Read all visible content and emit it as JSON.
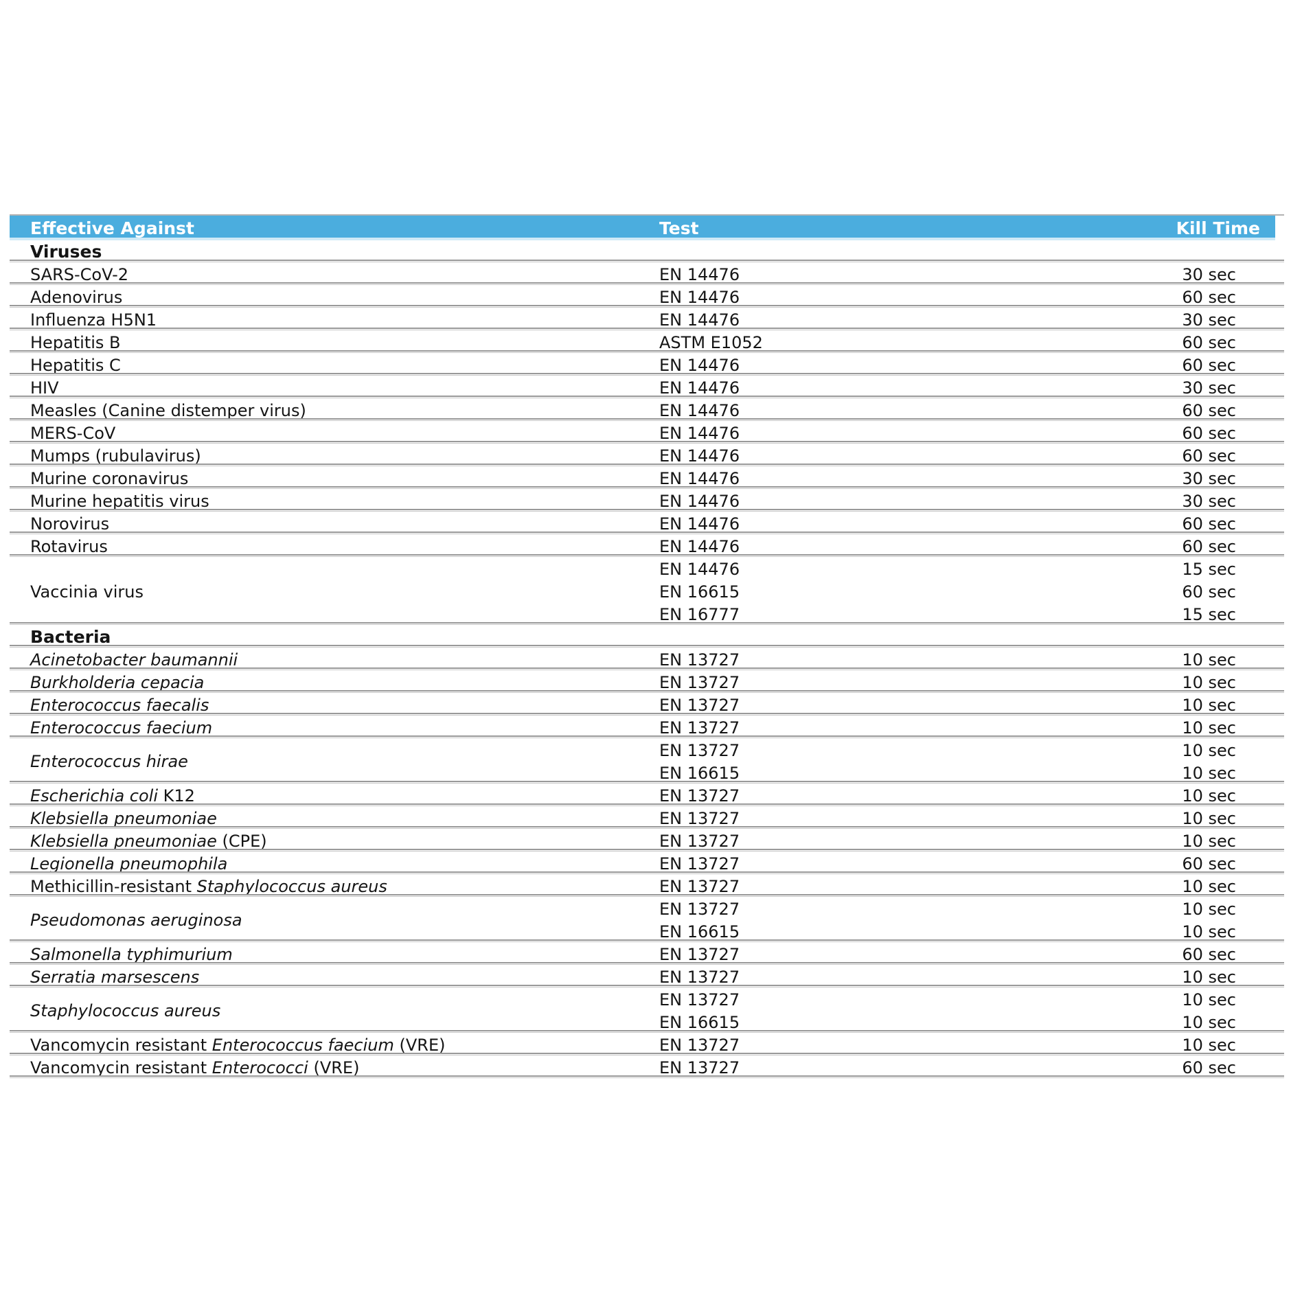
{
  "table": {
    "columns": [
      "Effective Against",
      "Test",
      "Kill Time"
    ],
    "colors": {
      "header_bg": "#4badde",
      "header_text": "#ffffff",
      "separator": "#999999",
      "text": "#151515"
    },
    "sections": [
      {
        "label": "Viruses",
        "rows": [
          {
            "name": [
              {
                "t": "SARS-CoV-2",
                "i": false
              }
            ],
            "tests": [
              {
                "test": "EN 14476",
                "kill": "30 sec"
              }
            ]
          },
          {
            "name": [
              {
                "t": "Adenovirus",
                "i": false
              }
            ],
            "tests": [
              {
                "test": "EN 14476",
                "kill": "60 sec"
              }
            ]
          },
          {
            "name": [
              {
                "t": "Influenza H5N1",
                "i": false
              }
            ],
            "tests": [
              {
                "test": "EN 14476",
                "kill": "30 sec"
              }
            ]
          },
          {
            "name": [
              {
                "t": "Hepatitis B",
                "i": false
              }
            ],
            "tests": [
              {
                "test": "ASTM E1052",
                "kill": "60 sec"
              }
            ]
          },
          {
            "name": [
              {
                "t": "Hepatitis C",
                "i": false
              }
            ],
            "tests": [
              {
                "test": "EN 14476",
                "kill": "60 sec"
              }
            ]
          },
          {
            "name": [
              {
                "t": "HIV",
                "i": false
              }
            ],
            "tests": [
              {
                "test": "EN 14476",
                "kill": "30 sec"
              }
            ]
          },
          {
            "name": [
              {
                "t": "Measles (Canine distemper virus)",
                "i": false
              }
            ],
            "tests": [
              {
                "test": "EN 14476",
                "kill": "60 sec"
              }
            ]
          },
          {
            "name": [
              {
                "t": "MERS-CoV",
                "i": false
              }
            ],
            "tests": [
              {
                "test": "EN 14476",
                "kill": "60 sec"
              }
            ]
          },
          {
            "name": [
              {
                "t": "Mumps (rubulavirus)",
                "i": false
              }
            ],
            "tests": [
              {
                "test": "EN 14476",
                "kill": "60 sec"
              }
            ]
          },
          {
            "name": [
              {
                "t": "Murine coronavirus",
                "i": false
              }
            ],
            "tests": [
              {
                "test": "EN 14476",
                "kill": "30 sec"
              }
            ]
          },
          {
            "name": [
              {
                "t": "Murine hepatitis virus",
                "i": false
              }
            ],
            "tests": [
              {
                "test": "EN 14476",
                "kill": "30 sec"
              }
            ]
          },
          {
            "name": [
              {
                "t": "Norovirus",
                "i": false
              }
            ],
            "tests": [
              {
                "test": "EN 14476",
                "kill": "60 sec"
              }
            ]
          },
          {
            "name": [
              {
                "t": "Rotavirus",
                "i": false
              }
            ],
            "tests": [
              {
                "test": "EN 14476",
                "kill": "60 sec"
              }
            ]
          },
          {
            "name": [
              {
                "t": "Vaccinia virus",
                "i": false
              }
            ],
            "tests": [
              {
                "test": "EN 14476",
                "kill": "15 sec"
              },
              {
                "test": "EN 16615",
                "kill": "60 sec"
              },
              {
                "test": "EN 16777",
                "kill": "15 sec"
              }
            ]
          }
        ]
      },
      {
        "label": "Bacteria",
        "rows": [
          {
            "name": [
              {
                "t": "Acinetobacter baumannii",
                "i": true
              }
            ],
            "tests": [
              {
                "test": "EN 13727",
                "kill": "10 sec"
              }
            ]
          },
          {
            "name": [
              {
                "t": "Burkholderia cepacia",
                "i": true
              }
            ],
            "tests": [
              {
                "test": "EN 13727",
                "kill": "10 sec"
              }
            ]
          },
          {
            "name": [
              {
                "t": "Enterococcus faecalis",
                "i": true
              }
            ],
            "tests": [
              {
                "test": "EN 13727",
                "kill": "10 sec"
              }
            ]
          },
          {
            "name": [
              {
                "t": "Enterococcus faecium",
                "i": true
              }
            ],
            "tests": [
              {
                "test": "EN 13727",
                "kill": "10 sec"
              }
            ]
          },
          {
            "name": [
              {
                "t": "Enterococcus hirae",
                "i": true
              }
            ],
            "tests": [
              {
                "test": "EN 13727",
                "kill": "10 sec"
              },
              {
                "test": "EN 16615",
                "kill": "10 sec"
              }
            ]
          },
          {
            "name": [
              {
                "t": "Escherichia coli",
                "i": true
              },
              {
                "t": " K12",
                "i": false
              }
            ],
            "tests": [
              {
                "test": "EN 13727",
                "kill": "10 sec"
              }
            ]
          },
          {
            "name": [
              {
                "t": "Klebsiella pneumoniae",
                "i": true
              }
            ],
            "tests": [
              {
                "test": "EN 13727",
                "kill": "10 sec"
              }
            ]
          },
          {
            "name": [
              {
                "t": "Klebsiella pneumoniae",
                "i": true
              },
              {
                "t": " (CPE)",
                "i": false
              }
            ],
            "tests": [
              {
                "test": "EN 13727",
                "kill": "10 sec"
              }
            ]
          },
          {
            "name": [
              {
                "t": "Legionella pneumophila",
                "i": true
              }
            ],
            "tests": [
              {
                "test": "EN 13727",
                "kill": "60 sec"
              }
            ]
          },
          {
            "name": [
              {
                "t": "Methicillin-resistant ",
                "i": false
              },
              {
                "t": "Staphylococcus aureus",
                "i": true
              }
            ],
            "tests": [
              {
                "test": "EN 13727",
                "kill": "10 sec"
              }
            ]
          },
          {
            "name": [
              {
                "t": "Pseudomonas aeruginosa",
                "i": true
              }
            ],
            "tests": [
              {
                "test": "EN 13727",
                "kill": "10 sec"
              },
              {
                "test": "EN 16615",
                "kill": "10 sec"
              }
            ]
          },
          {
            "name": [
              {
                "t": "Salmonella typhimurium",
                "i": true
              }
            ],
            "tests": [
              {
                "test": "EN 13727",
                "kill": "60 sec"
              }
            ]
          },
          {
            "name": [
              {
                "t": "Serratia marsescens",
                "i": true
              }
            ],
            "tests": [
              {
                "test": "EN 13727",
                "kill": "10 sec"
              }
            ]
          },
          {
            "name": [
              {
                "t": "Staphylococcus aureus",
                "i": true
              }
            ],
            "tests": [
              {
                "test": "EN 13727",
                "kill": "10 sec"
              },
              {
                "test": "EN 16615",
                "kill": "10 sec"
              }
            ]
          },
          {
            "name": [
              {
                "t": "Vancomycin resistant ",
                "i": false
              },
              {
                "t": "Enterococcus faecium",
                "i": true
              },
              {
                "t": " (VRE)",
                "i": false
              }
            ],
            "tests": [
              {
                "test": "EN 13727",
                "kill": "10 sec"
              }
            ]
          },
          {
            "name": [
              {
                "t": "Vancomycin resistant ",
                "i": false
              },
              {
                "t": "Enterococci",
                "i": true
              },
              {
                "t": " (VRE)",
                "i": false
              }
            ],
            "tests": [
              {
                "test": "EN 13727",
                "kill": "60 sec"
              }
            ]
          }
        ]
      }
    ]
  }
}
